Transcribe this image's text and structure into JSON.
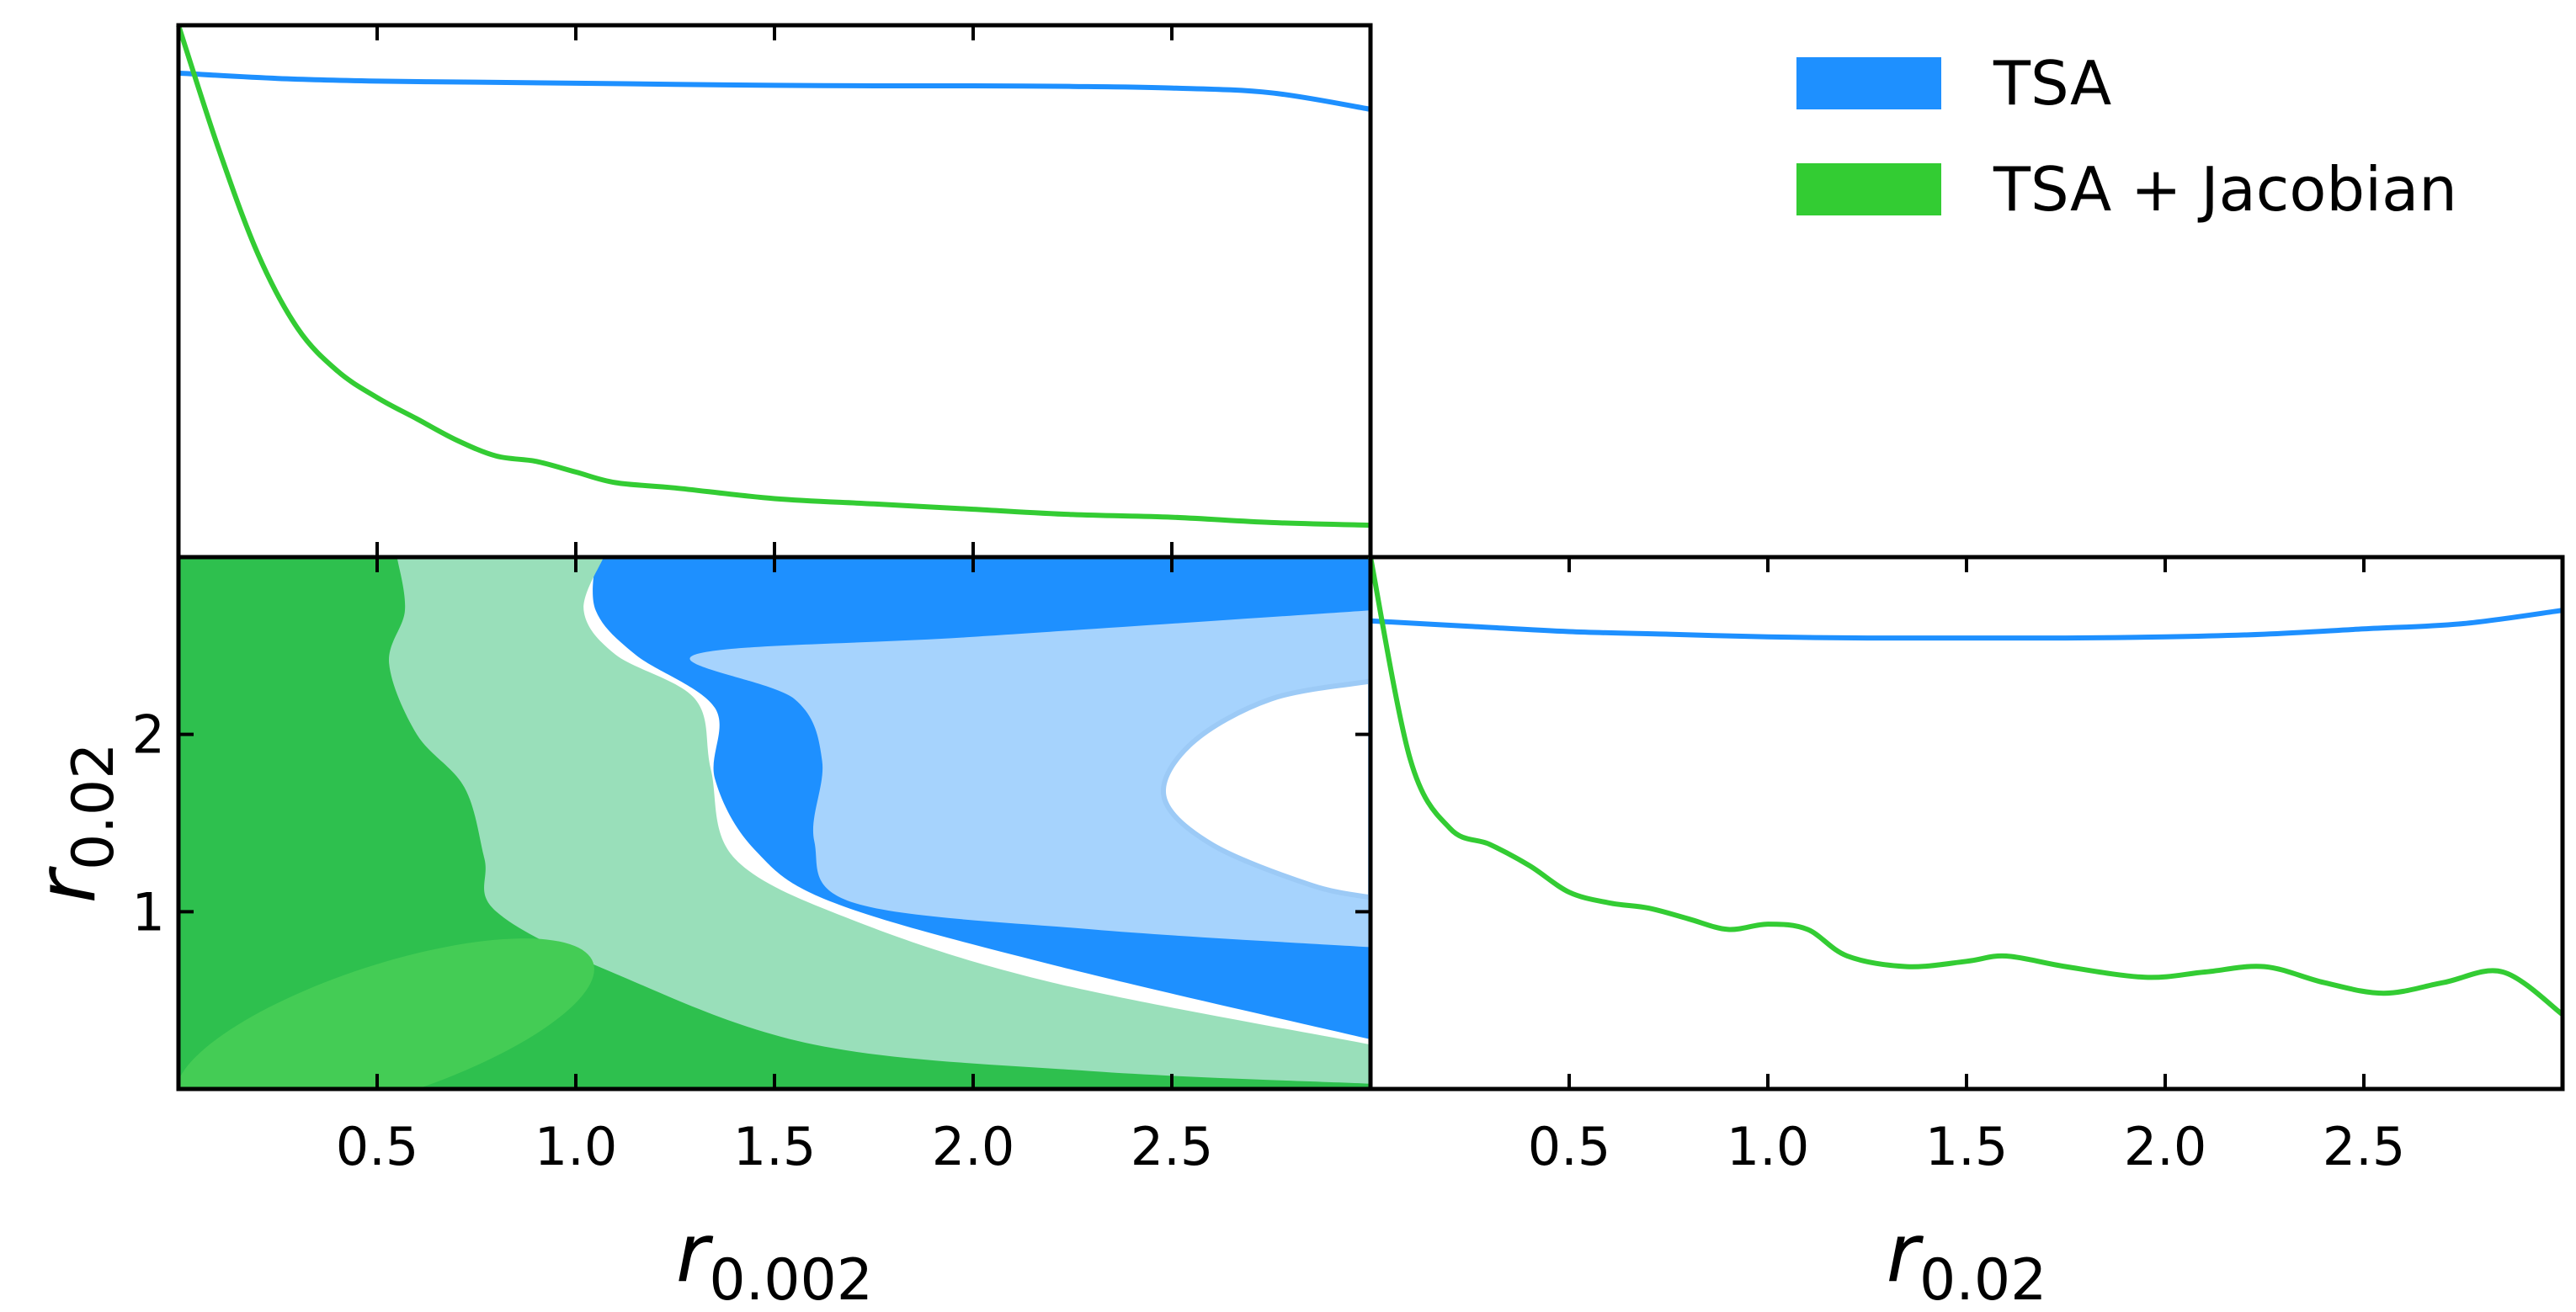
{
  "chart_data": {
    "type": "triangle",
    "colors": {
      "tsa": "#1e90ff",
      "tsa_light": "#a6d3fd",
      "jac": "#2ec04e",
      "jac_light": "#99dfba",
      "jac_inner": "#44cc55"
    },
    "legend": {
      "placement": "top-right",
      "entries": [
        {
          "label": "TSA",
          "color": "#1e90ff"
        },
        {
          "label": "TSA + Jacobian",
          "color": "#33cc33"
        }
      ]
    },
    "panels": [
      {
        "id": "marginal_r0002",
        "type": "line",
        "xlim": [
          0,
          3
        ],
        "ylim": [
          0,
          1
        ],
        "xticks": [
          0.5,
          1.0,
          1.5,
          2.0,
          2.5
        ],
        "series": [
          {
            "name": "TSA",
            "color": "#1e90ff",
            "x": [
              0,
              0.25,
              0.5,
              0.75,
              1.0,
              1.25,
              1.5,
              1.75,
              2.0,
              2.25,
              2.5,
              2.75,
              3.0
            ],
            "y": [
              0.91,
              0.9,
              0.895,
              0.893,
              0.891,
              0.889,
              0.887,
              0.886,
              0.886,
              0.885,
              0.882,
              0.873,
              0.842
            ]
          },
          {
            "name": "TSA + Jacobian",
            "color": "#33cc33",
            "x": [
              0,
              0.1,
              0.2,
              0.3,
              0.4,
              0.5,
              0.6,
              0.7,
              0.8,
              0.9,
              1.0,
              1.1,
              1.25,
              1.5,
              1.75,
              2.0,
              2.25,
              2.5,
              2.75,
              3.0
            ],
            "y": [
              1.0,
              0.77,
              0.57,
              0.43,
              0.35,
              0.3,
              0.26,
              0.22,
              0.19,
              0.18,
              0.16,
              0.14,
              0.13,
              0.11,
              0.1,
              0.09,
              0.08,
              0.075,
              0.065,
              0.06
            ]
          }
        ]
      },
      {
        "id": "joint_r0002_r002",
        "type": "contour",
        "xlim": [
          0,
          3
        ],
        "ylim": [
          0,
          3
        ],
        "xticks": [
          0.5,
          1.0,
          1.5,
          2.0,
          2.5
        ],
        "yticks": [
          1,
          2
        ],
        "xlabel": "r",
        "xlabel_sub": "0.002",
        "ylabel": "r",
        "ylabel_sub": "0.02"
      },
      {
        "id": "marginal_r002",
        "type": "line",
        "xlim": [
          0,
          3
        ],
        "ylim": [
          0,
          1
        ],
        "xticks": [
          0.5,
          1.0,
          1.5,
          2.0,
          2.5
        ],
        "xlabel": "r",
        "xlabel_sub": "0.02",
        "series": [
          {
            "name": "TSA",
            "color": "#1e90ff",
            "x": [
              0,
              0.25,
              0.5,
              0.75,
              1.0,
              1.25,
              1.5,
              1.75,
              2.0,
              2.25,
              2.5,
              2.75,
              3.0
            ],
            "y": [
              0.88,
              0.87,
              0.86,
              0.855,
              0.85,
              0.848,
              0.848,
              0.848,
              0.85,
              0.855,
              0.865,
              0.875,
              0.9
            ]
          },
          {
            "name": "TSA + Jacobian",
            "color": "#33cc33",
            "x": [
              0,
              0.1,
              0.2,
              0.3,
              0.4,
              0.5,
              0.6,
              0.7,
              0.8,
              0.9,
              1.0,
              1.1,
              1.2,
              1.35,
              1.5,
              1.6,
              1.75,
              1.95,
              2.1,
              2.25,
              2.4,
              2.55,
              2.7,
              2.85,
              3.0
            ],
            "y": [
              1.0,
              0.62,
              0.49,
              0.46,
              0.42,
              0.37,
              0.35,
              0.34,
              0.32,
              0.3,
              0.31,
              0.3,
              0.25,
              0.23,
              0.24,
              0.25,
              0.23,
              0.21,
              0.22,
              0.23,
              0.2,
              0.18,
              0.2,
              0.22,
              0.14
            ]
          }
        ]
      }
    ]
  }
}
